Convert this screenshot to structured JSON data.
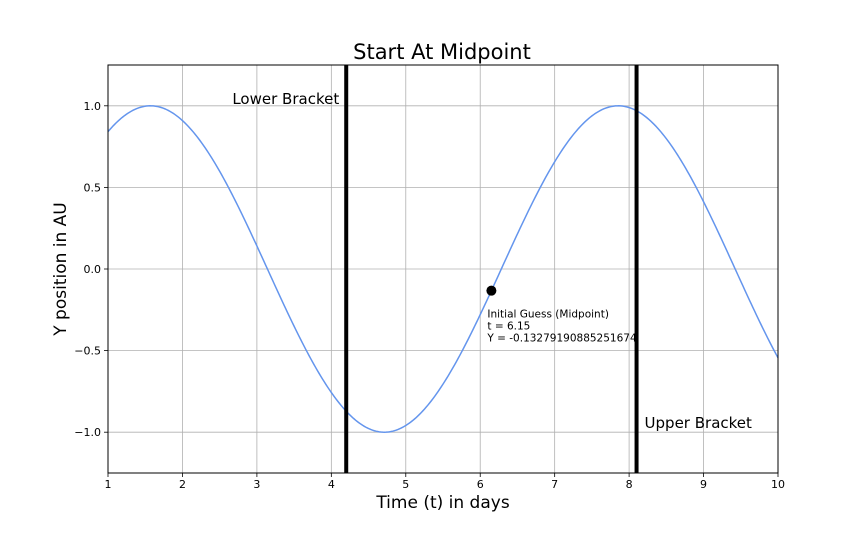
{
  "chart_data": {
    "type": "line",
    "title": "Start At Midpoint",
    "xlabel": "Time (t) in days",
    "ylabel": "Y position in AU",
    "xlim": [
      1,
      10
    ],
    "ylim": [
      -1.25,
      1.25
    ],
    "xticks": [
      1,
      2,
      3,
      4,
      5,
      6,
      7,
      8,
      9,
      10
    ],
    "xtick_labels": [
      "1",
      "2",
      "3",
      "4",
      "5",
      "6",
      "7",
      "8",
      "9",
      "10"
    ],
    "yticks": [
      1.0,
      0.5,
      0.0,
      -0.5,
      -1.0
    ],
    "ytick_labels": [
      "1.0",
      "0.5",
      "0.0",
      "−0.5",
      "−1.0"
    ],
    "grid": true,
    "series": [
      {
        "function": "sin(t)",
        "color": "#6495ed",
        "x": [
          1.0,
          1.25,
          1.5,
          1.75,
          2.0,
          2.25,
          2.5,
          2.75,
          3.0,
          3.25,
          3.5,
          3.75,
          4.0,
          4.25,
          4.5,
          4.75,
          5.0,
          5.25,
          5.5,
          5.75,
          6.0,
          6.25,
          6.5,
          6.75,
          7.0,
          7.25,
          7.5,
          7.75,
          8.0,
          8.25,
          8.5,
          8.75,
          9.0,
          9.25,
          9.5,
          9.75,
          10.0
        ],
        "y": [
          0.841,
          0.949,
          0.997,
          0.984,
          0.909,
          0.778,
          0.598,
          0.382,
          0.141,
          -0.108,
          -0.351,
          -0.572,
          -0.757,
          -0.895,
          -0.978,
          -0.999,
          -0.959,
          -0.859,
          -0.706,
          -0.508,
          -0.279,
          -0.033,
          0.215,
          0.45,
          0.657,
          0.823,
          0.938,
          0.995,
          0.989,
          0.923,
          0.798,
          0.625,
          0.412,
          0.174,
          -0.075,
          -0.319,
          -0.544
        ]
      }
    ],
    "vertical_lines": [
      {
        "x": 4.2,
        "color": "#000000",
        "label": "Lower Bracket"
      },
      {
        "x": 8.1,
        "color": "#000000",
        "label": "Upper Bracket"
      }
    ],
    "point": {
      "x": 6.15,
      "y": -0.13279190885251674,
      "color": "#000000",
      "annotation_lines": [
        "Initial Guess (Midpoint)",
        "t = 6.15",
        "Y = -0.13279190885251674"
      ]
    }
  }
}
